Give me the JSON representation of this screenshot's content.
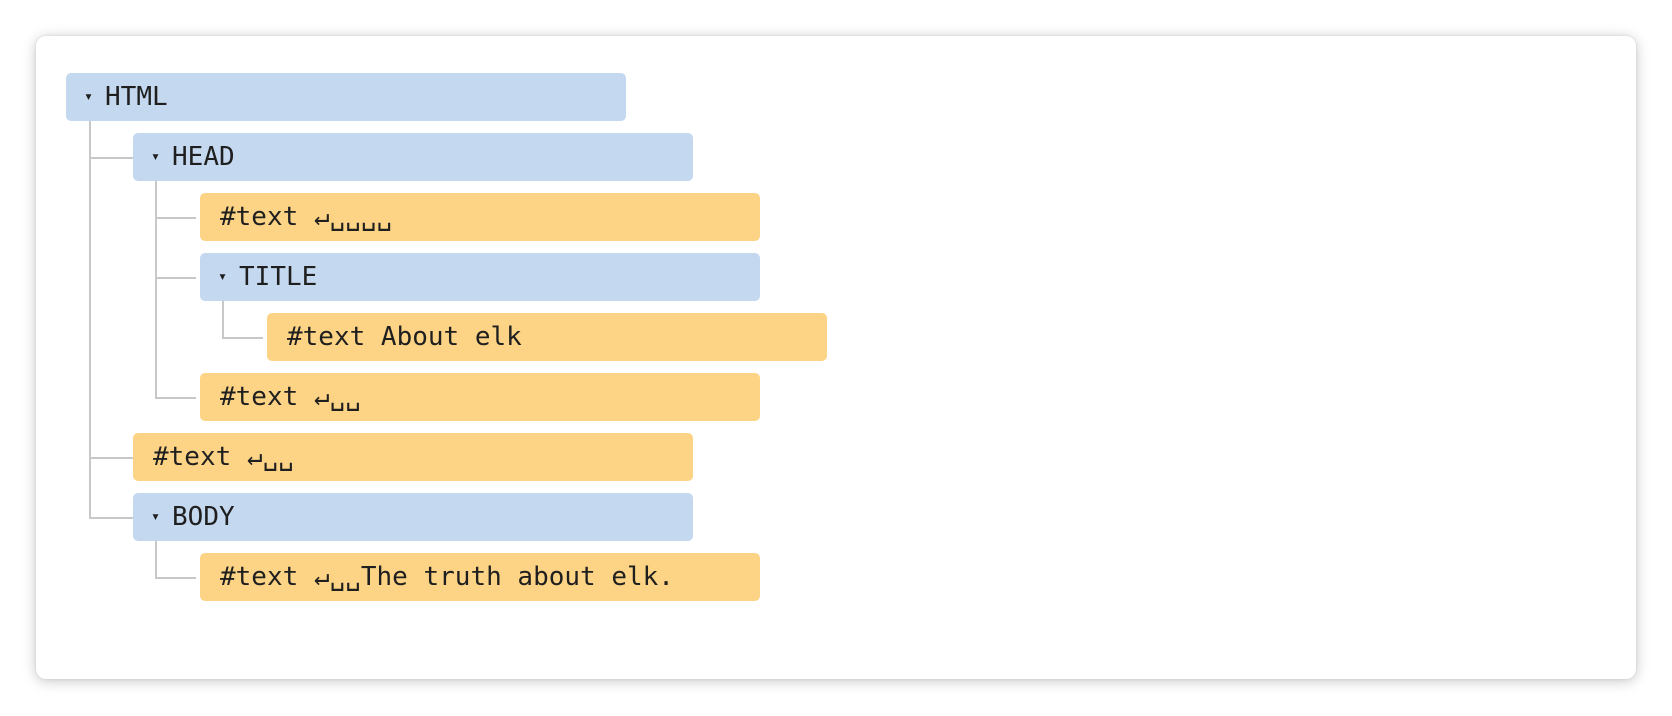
{
  "tree": {
    "html": {
      "toggle": "▾",
      "label": "HTML"
    },
    "head": {
      "toggle": "▾",
      "label": "HEAD"
    },
    "head_text1": {
      "label": "#text ↵␣␣␣␣"
    },
    "title": {
      "toggle": "▾",
      "label": "TITLE"
    },
    "title_text": {
      "label": "#text About elk"
    },
    "head_text2": {
      "label": "#text ↵␣␣"
    },
    "html_text": {
      "label": "#text ↵␣␣"
    },
    "body": {
      "toggle": "▾",
      "label": "BODY"
    },
    "body_text": {
      "label": "#text ↵␣␣The truth about elk."
    }
  },
  "colors": {
    "element_node": "#c4d8f0",
    "text_node": "#fdd485",
    "connector": "#c8c8c8"
  }
}
